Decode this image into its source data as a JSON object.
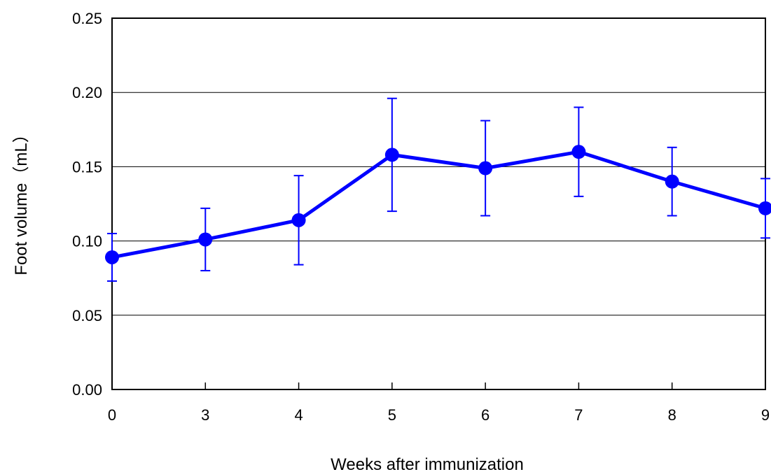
{
  "chart_data": {
    "type": "line",
    "title": "",
    "xlabel": "Weeks after immunization",
    "ylabel": "Foot volume（mL）",
    "categories": [
      "0",
      "3",
      "4",
      "5",
      "6",
      "7",
      "8",
      "9"
    ],
    "ylim": [
      0,
      0.25
    ],
    "yticks": [
      "0.00",
      "0.05",
      "0.10",
      "0.15",
      "0.20",
      "0.25"
    ],
    "grid": "horizontal",
    "legend": "none",
    "series": [
      {
        "color": "#0000ff",
        "values": [
          0.089,
          0.101,
          0.114,
          0.158,
          0.149,
          0.16,
          0.14,
          0.122
        ],
        "error_low": [
          0.073,
          0.08,
          0.084,
          0.12,
          0.117,
          0.13,
          0.117,
          0.102
        ],
        "error_high": [
          0.105,
          0.122,
          0.144,
          0.196,
          0.181,
          0.19,
          0.163,
          0.142
        ]
      }
    ]
  }
}
